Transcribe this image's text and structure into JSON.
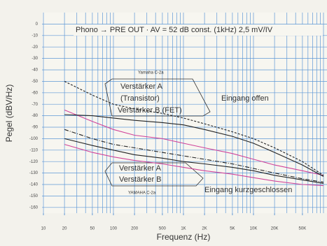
{
  "chart_data": {
    "type": "line",
    "y_label": "Pegel (dBV/Hz)",
    "x_label": "Frequenz (Hz)",
    "log_x": true,
    "grid": true,
    "grid_color": "#5f98d6",
    "xlim": [
      10,
      100000
    ],
    "ylim": [
      -165,
      10
    ],
    "xticks": [
      10,
      20,
      50,
      100,
      200,
      500,
      {
        "value": 1000,
        "label": "1K"
      },
      {
        "value": 2000,
        "label": "2K"
      },
      {
        "value": 5000,
        "label": "5K"
      },
      {
        "value": 10000,
        "label": "10K"
      },
      {
        "value": 20000,
        "label": "20K"
      },
      {
        "value": 50000,
        "label": "50K"
      }
    ],
    "xgrid": [
      10,
      20,
      30,
      40,
      50,
      60,
      70,
      80,
      90,
      100,
      200,
      300,
      400,
      500,
      600,
      700,
      800,
      900,
      1000,
      2000,
      3000,
      4000,
      5000,
      6000,
      7000,
      8000,
      9000,
      10000,
      20000,
      30000,
      40000,
      50000,
      60000,
      70000,
      80000,
      90000,
      100000
    ],
    "yticks": [
      0,
      -10,
      -20,
      -30,
      -40,
      -50,
      -60,
      -70,
      -80,
      -90,
      -100,
      -110,
      -120,
      -130,
      -140,
      -150,
      -160
    ],
    "x": [
      20,
      50,
      100,
      200,
      500,
      1000,
      2000,
      5000,
      10000,
      20000,
      50000,
      100000
    ],
    "series": [
      {
        "color": "#d0449a",
        "dash": "solid",
        "values": [
          -75,
          -85,
          -92,
          -97,
          -100,
          -104,
          -108,
          -113,
          -118,
          -123,
          -128,
          -132
        ]
      },
      {
        "color": "#222222",
        "dash": "dashed",
        "values": [
          -50,
          -62,
          -70,
          -74,
          -78,
          -82,
          -87,
          -94,
          -100,
          -108,
          -120,
          -132
        ]
      },
      {
        "color": "#222222",
        "dash": "solid",
        "values": [
          -79,
          -80,
          -82,
          -84,
          -86,
          -88,
          -92,
          -98,
          -104,
          -112,
          -123,
          -133
        ]
      },
      {
        "color": "#222222",
        "dash": "dashdot",
        "values": [
          -92,
          -100,
          -105,
          -108,
          -112,
          -115,
          -118,
          -122,
          -126,
          -130,
          -135,
          -138
        ]
      },
      {
        "color": "#222222",
        "dash": "solid",
        "values": [
          -100,
          -106,
          -110,
          -114,
          -117,
          -120,
          -122,
          -125,
          -128,
          -132,
          -136,
          -139
        ]
      },
      {
        "color": "#d0449a",
        "dash": "solid",
        "values": [
          -105,
          -112,
          -116,
          -119,
          -122,
          -125,
          -128,
          -131,
          -134,
          -137,
          -140,
          -141
        ]
      }
    ],
    "annotations": [
      "Phono → PRE OUT · AV = 52 dB const. (1kHz) 2,5 mV/IV",
      "Yamaha C-2a",
      "Verstärker A",
      "(Transistor)",
      "Verstärker B (FET)",
      "Eingang offen",
      "Verstärker A",
      "Verstärker B",
      "YAMAHA C-2a",
      "Eingang kurzgeschlossen"
    ]
  }
}
